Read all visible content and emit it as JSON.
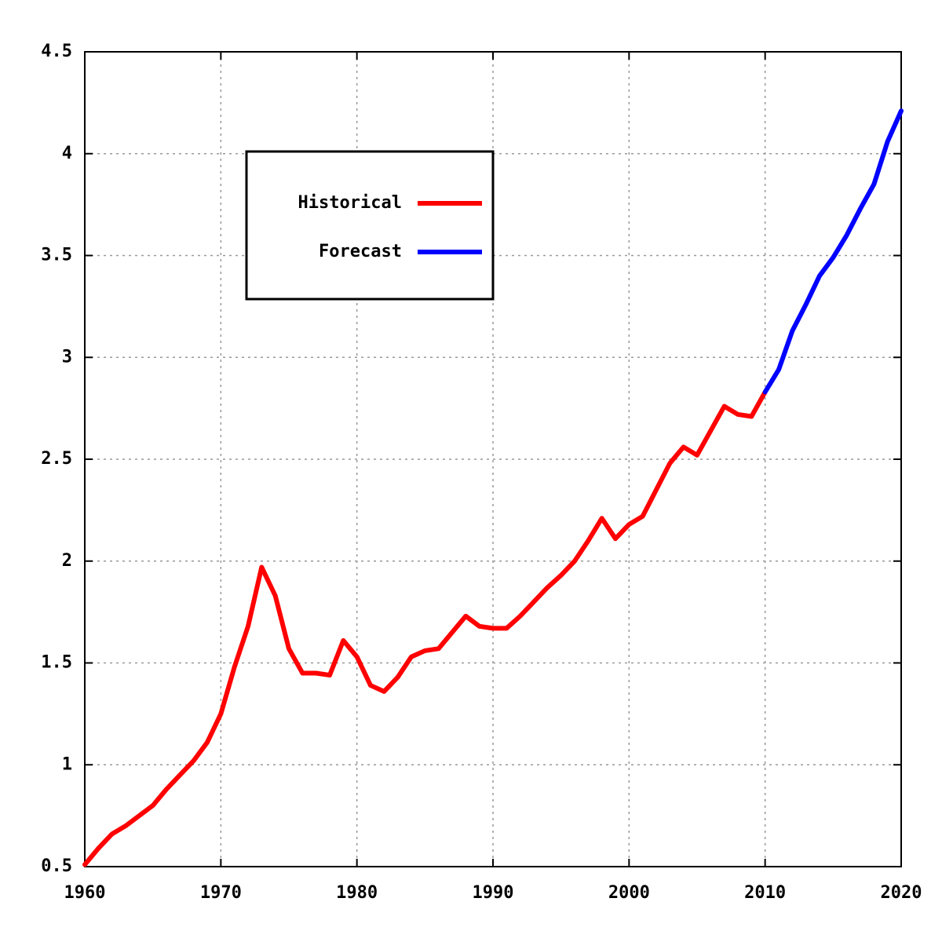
{
  "chart_data": {
    "type": "line",
    "x": [
      1960,
      1961,
      1962,
      1963,
      1964,
      1965,
      1966,
      1967,
      1968,
      1969,
      1970,
      1971,
      1972,
      1973,
      1974,
      1975,
      1976,
      1977,
      1978,
      1979,
      1980,
      1981,
      1982,
      1983,
      1984,
      1985,
      1986,
      1987,
      1988,
      1989,
      1990,
      1991,
      1992,
      1993,
      1994,
      1995,
      1996,
      1997,
      1998,
      1999,
      2000,
      2001,
      2002,
      2003,
      2004,
      2005,
      2006,
      2007,
      2008,
      2009,
      2010,
      2011,
      2012,
      2013,
      2014,
      2015,
      2016,
      2017,
      2018,
      2019,
      2020
    ],
    "series": [
      {
        "name": "Historical",
        "color": "#ff0000",
        "values": [
          0.51,
          0.59,
          0.66,
          0.7,
          0.75,
          0.8,
          0.88,
          0.95,
          1.02,
          1.11,
          1.25,
          1.48,
          1.68,
          1.97,
          1.83,
          1.57,
          1.45,
          1.45,
          1.44,
          1.61,
          1.53,
          1.39,
          1.36,
          1.43,
          1.53,
          1.56,
          1.57,
          1.65,
          1.73,
          1.68,
          1.67,
          1.67,
          1.73,
          1.8,
          1.87,
          1.93,
          2.0,
          2.1,
          2.21,
          2.11,
          2.18,
          2.22,
          2.35,
          2.48,
          2.56,
          2.52,
          2.64,
          2.76,
          2.72,
          2.71,
          2.83,
          null,
          null,
          null,
          null,
          null,
          null,
          null,
          null,
          null,
          null
        ]
      },
      {
        "name": "Forecast",
        "color": "#0000ff",
        "values": [
          null,
          null,
          null,
          null,
          null,
          null,
          null,
          null,
          null,
          null,
          null,
          null,
          null,
          null,
          null,
          null,
          null,
          null,
          null,
          null,
          null,
          null,
          null,
          null,
          null,
          null,
          null,
          null,
          null,
          null,
          null,
          null,
          null,
          null,
          null,
          null,
          null,
          null,
          null,
          null,
          null,
          null,
          null,
          null,
          null,
          null,
          null,
          null,
          null,
          null,
          2.83,
          2.94,
          3.13,
          3.26,
          3.4,
          3.49,
          3.6,
          3.73,
          3.85,
          4.06,
          4.21
        ]
      }
    ],
    "xlim": [
      1960,
      2020
    ],
    "xticks": [
      1960,
      1970,
      1980,
      1990,
      2000,
      2010,
      2020
    ],
    "ylim": [
      0.5,
      4.5
    ],
    "yticks": [
      0.5,
      1,
      1.5,
      2,
      2.5,
      3,
      3.5,
      4,
      4.5
    ],
    "grid": true,
    "legend": "upper left"
  }
}
